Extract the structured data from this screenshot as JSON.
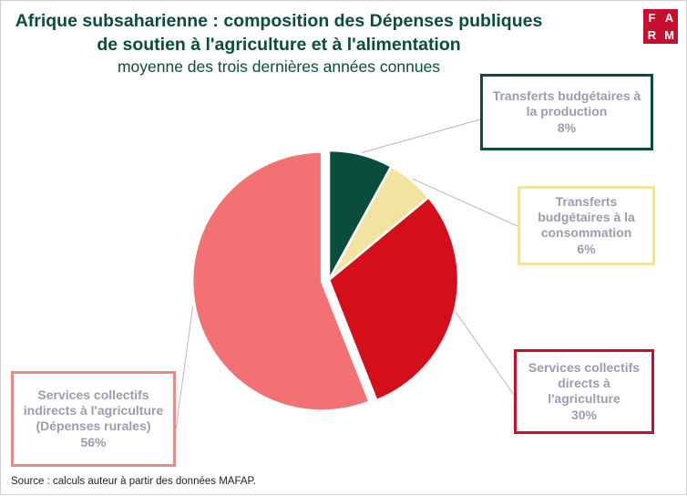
{
  "header": {
    "title_line1": "Afrique subsaharienne : composition des Dépenses publiques",
    "title_line2": "de soutien à l'agriculture et à l'alimentation",
    "subtitle": "moyenne des trois dernières années connues"
  },
  "logo": {
    "letters": [
      "F",
      "A",
      "R",
      "M"
    ],
    "color": "#c8102e"
  },
  "chart_data": {
    "type": "pie",
    "title": "Afrique subsaharienne : composition des Dépenses publiques de soutien à l'agriculture et à l'alimentation",
    "subtitle": "moyenne des trois dernières années connues",
    "slices": [
      {
        "label_lines": [
          "Transferts budgétaires à",
          "la production"
        ],
        "value": 8,
        "value_label": "8%",
        "color": "#0b4d3c",
        "exploded": false
      },
      {
        "label_lines": [
          "Transferts",
          "budgétaires à la",
          "consommation"
        ],
        "value": 6,
        "value_label": "6%",
        "color": "#f3e3a0",
        "exploded": false
      },
      {
        "label_lines": [
          "Services collectifs",
          "directs à",
          "l'agriculture"
        ],
        "value": 30,
        "value_label": "30%",
        "color": "#d50f1a",
        "exploded": false
      },
      {
        "label_lines": [
          "Services collectifs",
          "indirects à l'agriculture",
          "(Dépenses rurales)"
        ],
        "value": 56,
        "value_label": "56%",
        "color": "#f47173",
        "exploded": true
      }
    ],
    "start": "12 o'clock",
    "direction": "clockwise",
    "callout_color": "#9f9aae"
  },
  "footer": {
    "source": "Source : calculs auteur à partir des données MAFAP."
  }
}
